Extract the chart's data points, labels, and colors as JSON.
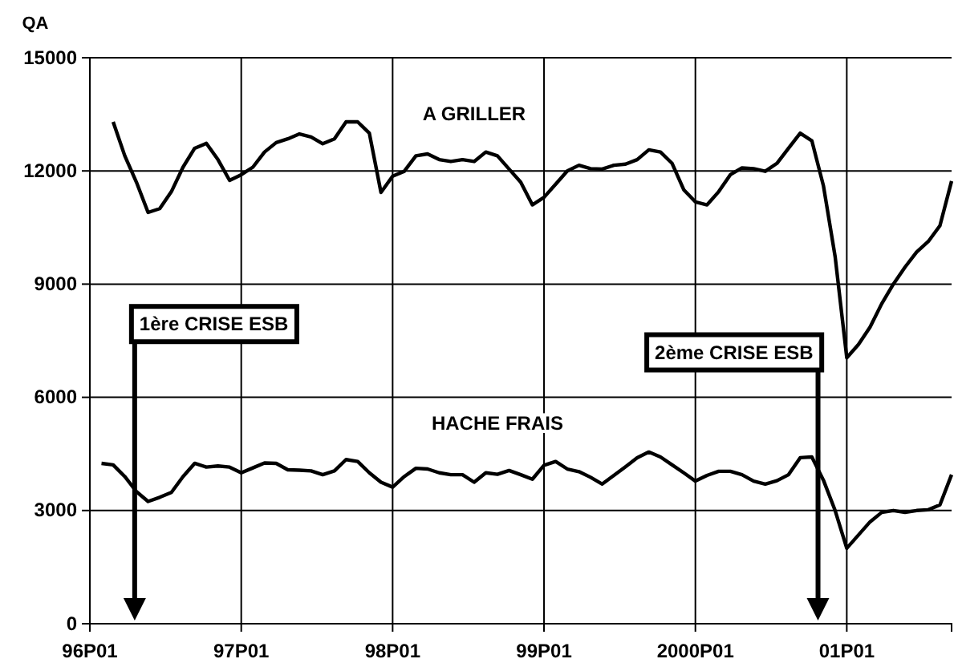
{
  "chart_data": {
    "type": "line",
    "ylabel": "QA",
    "categories": [
      "96P01",
      null,
      null,
      null,
      null,
      null,
      null,
      null,
      null,
      null,
      null,
      null,
      null,
      "97P01",
      null,
      null,
      null,
      null,
      null,
      null,
      null,
      null,
      null,
      null,
      null,
      null,
      "98P01",
      null,
      null,
      null,
      null,
      null,
      null,
      null,
      null,
      null,
      null,
      null,
      null,
      "99P01",
      null,
      null,
      null,
      null,
      null,
      null,
      null,
      null,
      null,
      null,
      null,
      null,
      "2000P01",
      null,
      null,
      null,
      null,
      null,
      null,
      null,
      null,
      null,
      null,
      null,
      null,
      "01P01",
      null,
      null,
      null,
      null,
      null,
      null,
      null,
      null,
      null
    ],
    "ylim": [
      0,
      15000
    ],
    "yticks": [
      0,
      3000,
      6000,
      9000,
      12000,
      15000
    ],
    "grid": true,
    "legend": false,
    "annotations": [
      "1ère CRISE ESB",
      "2ème CRISE ESB"
    ],
    "series": [
      {
        "name": "A GRILLER",
        "color": "#000000",
        "values": [
          null,
          null,
          13300,
          12400,
          11700,
          10900,
          11000,
          11450,
          12100,
          12600,
          12730,
          12300,
          11750,
          11900,
          12100,
          12500,
          12750,
          12850,
          12980,
          12900,
          12720,
          12850,
          13300,
          13300,
          13000,
          11430,
          11860,
          11990,
          12400,
          12450,
          12300,
          12250,
          12300,
          12250,
          12500,
          12400,
          12050,
          11700,
          11100,
          11300,
          11650,
          12000,
          12150,
          12060,
          12050,
          12150,
          12180,
          12300,
          12560,
          12500,
          12200,
          11500,
          11180,
          11100,
          11450,
          11900,
          12080,
          12060,
          11990,
          12200,
          12600,
          13000,
          12800,
          11600,
          9730,
          7050,
          7400,
          7860,
          8480,
          9000,
          9450,
          9850,
          10130,
          10550,
          11730
        ]
      },
      {
        "name": "HACHE FRAIS",
        "color": "#000000",
        "values": [
          null,
          4250,
          4210,
          3900,
          3500,
          3240,
          3350,
          3480,
          3900,
          4250,
          4150,
          4180,
          4150,
          4000,
          4130,
          4260,
          4250,
          4080,
          4070,
          4050,
          3950,
          4050,
          4350,
          4300,
          4000,
          3750,
          3620,
          3900,
          4120,
          4100,
          4000,
          3950,
          3950,
          3750,
          4000,
          3960,
          4060,
          3950,
          3830,
          4200,
          4300,
          4100,
          4030,
          3880,
          3700,
          3930,
          4160,
          4400,
          4550,
          4420,
          4210,
          4000,
          3780,
          3930,
          4040,
          4040,
          3950,
          3780,
          3700,
          3790,
          3950,
          4400,
          4420,
          3800,
          3000,
          2000,
          2350,
          2700,
          2950,
          3000,
          2950,
          3000,
          3020,
          3150,
          3950
        ]
      }
    ]
  }
}
